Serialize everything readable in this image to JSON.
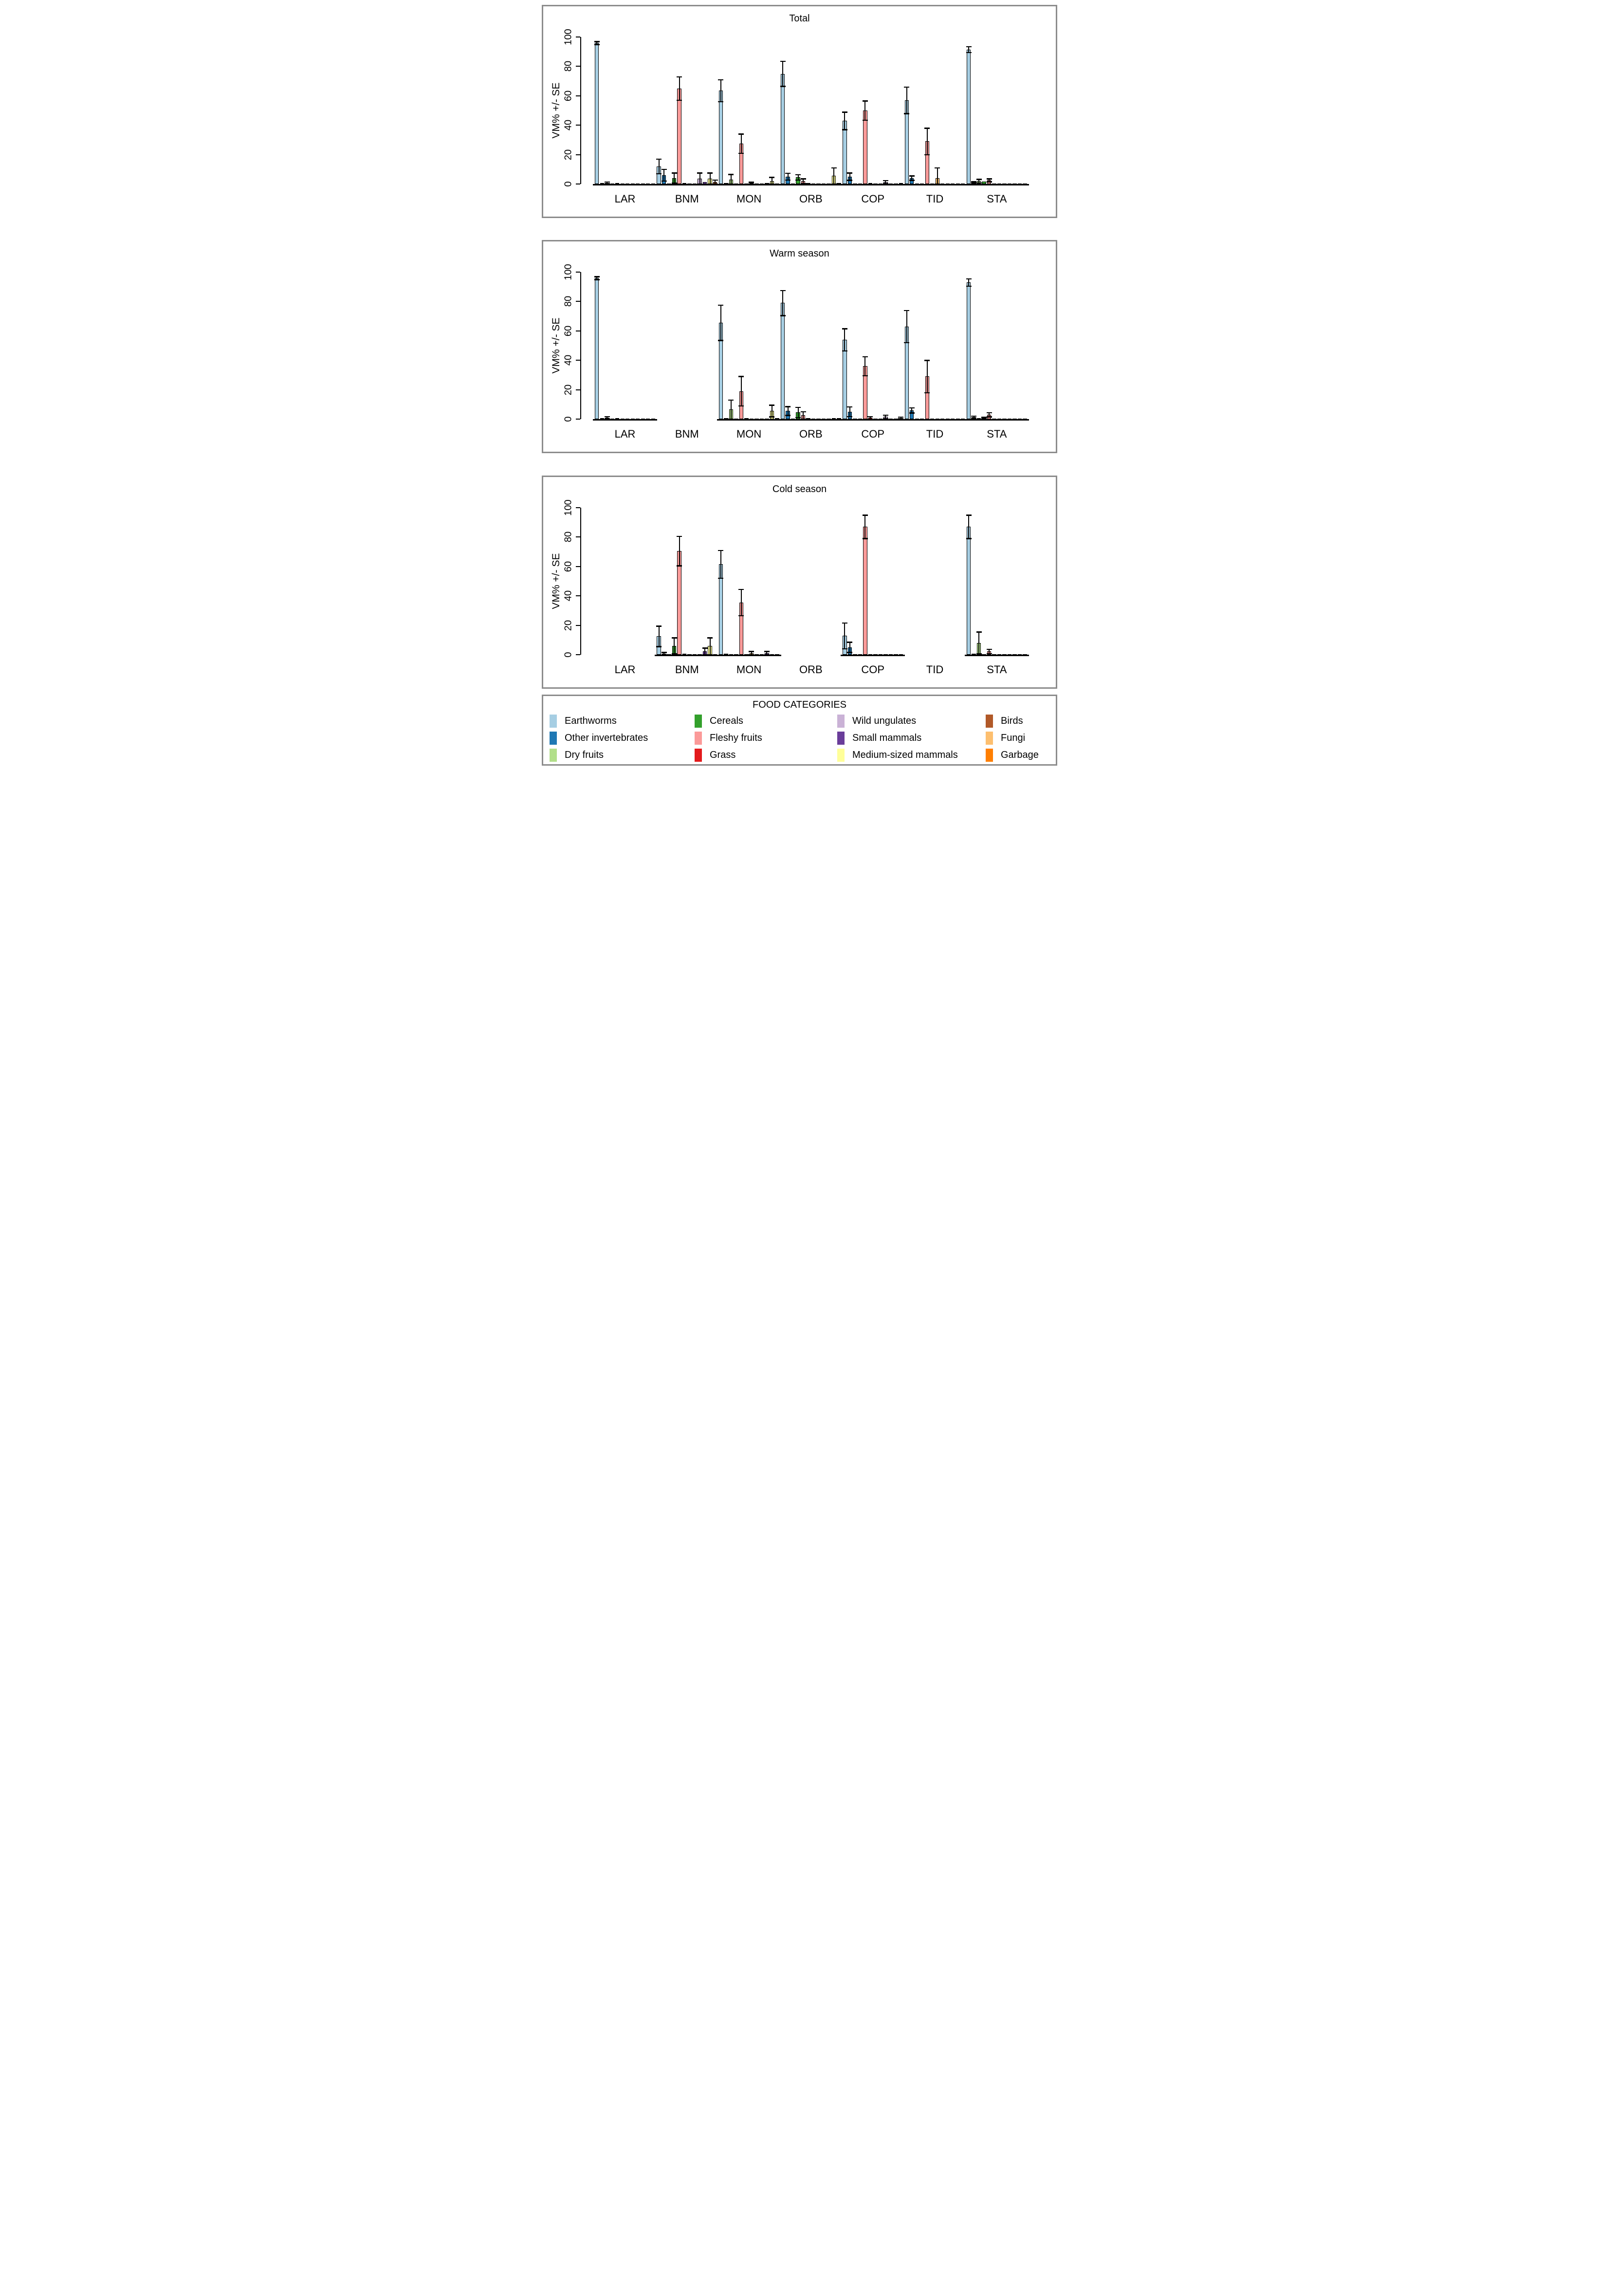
{
  "chart_data": {
    "type": "bar",
    "ylabel": "VM% +/- SE",
    "ylim": [
      0,
      100
    ],
    "yticks": [
      0,
      20,
      40,
      60,
      80,
      100
    ],
    "sites": [
      "LAR",
      "BNM",
      "MON",
      "ORB",
      "COP",
      "TID",
      "STA"
    ],
    "bar_order": [
      "Earthworms",
      "Other invertebrates",
      "Dry fruits",
      "Cereals",
      "Fleshy fruits",
      "Grass",
      "Fungi",
      "Garbage",
      "Wild ungulates",
      "Small mammals",
      "Medium-sized mammals",
      "Birds"
    ],
    "colors": {
      "Earthworms": "#A6CEE3",
      "Other invertebrates": "#1F78B4",
      "Dry fruits": "#B2DF8A",
      "Cereals": "#33A02C",
      "Fleshy fruits": "#FB9A99",
      "Grass": "#E31A1C",
      "Wild ungulates": "#CAB2D6",
      "Small mammals": "#6A3D9A",
      "Medium-sized mammals": "#FFFF99",
      "Birds": "#B15928",
      "Fungi": "#FDBF6F",
      "Garbage": "#FF7F00"
    },
    "value_format": "[VM%, SE]",
    "panels": [
      {
        "title": "Total",
        "groups": {
          "LAR": {
            "Earthworms": [
              96,
              1
            ],
            "Other invertebrates": [
              0.5,
              0
            ],
            "Dry fruits": [
              0.8,
              0.6
            ],
            "Fleshy fruits": [
              0.5,
              0
            ]
          },
          "BNM": {
            "Earthworms": [
              12,
              5
            ],
            "Other invertebrates": [
              6,
              4
            ],
            "Cereals": [
              4,
              3.5
            ],
            "Fleshy fruits": [
              65,
              8
            ],
            "Grass": [
              0.7,
              0
            ],
            "Wild ungulates": [
              3.5,
              4
            ],
            "Small mammals": [
              1.2,
              0
            ],
            "Medium-sized mammals": [
              3.5,
              4
            ],
            "Birds": [
              1.3,
              1.5
            ]
          },
          "MON": {
            "Earthworms": [
              63.5,
              7.5
            ],
            "Other invertebrates": [
              0.6,
              0
            ],
            "Dry fruits": [
              3,
              3.5
            ],
            "Fleshy fruits": [
              27.5,
              6.5
            ],
            "Fungi": [
              0.6,
              0.6
            ],
            "Small mammals": [
              0.6,
              0
            ],
            "Medium-sized mammals": [
              2,
              2.5
            ]
          },
          "ORB": {
            "Earthworms": [
              75,
              8.5
            ],
            "Other invertebrates": [
              5,
              2.3
            ],
            "Cereals": [
              4.5,
              1.8
            ],
            "Fleshy fruits": [
              2,
              1.6
            ],
            "Grass": [
              0.6,
              0
            ],
            "Medium-sized mammals": [
              5.5,
              5.5
            ],
            "Birds": [
              0.6,
              0
            ]
          },
          "COP": {
            "Earthworms": [
              43,
              6
            ],
            "Other invertebrates": [
              5,
              2.5
            ],
            "Fleshy fruits": [
              50,
              6.5
            ],
            "Grass": [
              0.8,
              0
            ],
            "Wild ungulates": [
              1.3,
              1.1
            ],
            "Birds": [
              0.6,
              0
            ]
          },
          "TID": {
            "Earthworms": [
              57,
              9
            ],
            "Other invertebrates": [
              4,
              1.5
            ],
            "Fleshy fruits": [
              29,
              9
            ],
            "Fungi": [
              4,
              7
            ]
          },
          "STA": {
            "Earthworms": [
              91.5,
              2
            ],
            "Other invertebrates": [
              1,
              0.5
            ],
            "Dry fruits": [
              2,
              1.2
            ],
            "Cereals": [
              1.5,
              0
            ],
            "Fleshy fruits": [
              2.5,
              1
            ]
          }
        }
      },
      {
        "title": "Warm season",
        "groups": {
          "LAR": {
            "Earthworms": [
              96,
              1
            ],
            "Other invertebrates": [
              0.5,
              0
            ],
            "Dry fruits": [
              1,
              0.7
            ],
            "Fleshy fruits": [
              0.7,
              0
            ]
          },
          "MON": {
            "Earthworms": [
              65.5,
              12
            ],
            "Other invertebrates": [
              0.8,
              0
            ],
            "Dry fruits": [
              6.5,
              6.5
            ],
            "Fleshy fruits": [
              19,
              10
            ],
            "Grass": [
              0.4,
              0
            ],
            "Medium-sized mammals": [
              5.5,
              4
            ],
            "Birds": [
              0.7,
              0
            ]
          },
          "ORB": {
            "Earthworms": [
              79,
              8.5
            ],
            "Other invertebrates": [
              5.5,
              3
            ],
            "Cereals": [
              4.5,
              3.5
            ],
            "Fleshy fruits": [
              2.5,
              2.5
            ],
            "Grass": [
              0.6,
              0
            ],
            "Medium-sized mammals": [
              0.4,
              0
            ],
            "Birds": [
              0.4,
              0
            ]
          },
          "COP": {
            "Earthworms": [
              54,
              7.5
            ],
            "Other invertebrates": [
              5,
              3.3
            ],
            "Fleshy fruits": [
              36,
              6.5
            ],
            "Grass": [
              0.9,
              0.8
            ],
            "Wild ungulates": [
              1.6,
              1.2
            ],
            "Birds": [
              0.8,
              0.6
            ]
          },
          "TID": {
            "Earthworms": [
              63,
              11
            ],
            "Other invertebrates": [
              6,
              1.7
            ],
            "Fleshy fruits": [
              29,
              11
            ]
          },
          "STA": {
            "Earthworms": [
              93,
              2.5
            ],
            "Other invertebrates": [
              1.3,
              0.7
            ],
            "Dry fruits": [
              0.4,
              0
            ],
            "Cereals": [
              0.8,
              0.5
            ],
            "Fleshy fruits": [
              3,
              1.4
            ]
          }
        }
      },
      {
        "title": "Cold season",
        "groups": {
          "BNM": {
            "Earthworms": [
              12.5,
              7
            ],
            "Other invertebrates": [
              0.8,
              0.7
            ],
            "Cereals": [
              6,
              5.5
            ],
            "Fleshy fruits": [
              70.5,
              10
            ],
            "Grass": [
              0.8,
              0
            ],
            "Small mammals": [
              2.2,
              2.3
            ],
            "Medium-sized mammals": [
              5.8,
              5.7
            ]
          },
          "MON": {
            "Earthworms": [
              61.5,
              9.5
            ],
            "Other invertebrates": [
              0.5,
              0
            ],
            "Fleshy fruits": [
              35.5,
              9
            ],
            "Fungi": [
              1.1,
              1.1
            ],
            "Small mammals": [
              1.1,
              1.1
            ]
          },
          "COP": {
            "Earthworms": [
              12.8,
              8.8
            ],
            "Other invertebrates": [
              5,
              3.5
            ],
            "Fleshy fruits": [
              87,
              8
            ]
          },
          "STA": {
            "Earthworms": [
              87,
              8
            ],
            "Other invertebrates": [
              0.5,
              0
            ],
            "Dry fruits": [
              8,
              7.5
            ],
            "Fleshy fruits": [
              2.3,
              1.5
            ]
          }
        }
      }
    ],
    "legend": {
      "title": "FOOD CATEGORIES",
      "columns": [
        [
          "Earthworms",
          "Other invertebrates",
          "Dry fruits"
        ],
        [
          "Cereals",
          "Fleshy fruits",
          "Grass"
        ],
        [
          "Wild ungulates",
          "Small mammals",
          "Medium-sized mammals"
        ],
        [
          "Birds",
          "Fungi",
          "Garbage"
        ]
      ]
    }
  }
}
